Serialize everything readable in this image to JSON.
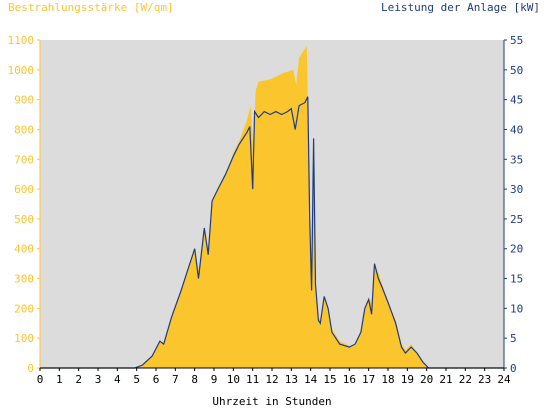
{
  "chart_data": {
    "type": "area",
    "header_left": "Bestrahlungsstärke [W/qm]",
    "header_right": "Leistung der Anlage [kW]",
    "xlabel": "Uhrzeit in Stunden",
    "grid": false,
    "x_range": [
      0,
      24
    ],
    "x_ticks": [
      "0",
      "1",
      "2",
      "3",
      "4",
      "5",
      "6",
      "7",
      "8",
      "9",
      "10",
      "11",
      "12",
      "13",
      "14",
      "15",
      "16",
      "17",
      "18",
      "19",
      "20",
      "21",
      "22",
      "23",
      "24"
    ],
    "y_left": {
      "range": [
        0,
        1100
      ],
      "ticks": [
        "0",
        "100",
        "200",
        "300",
        "400",
        "500",
        "600",
        "700",
        "800",
        "900",
        "1000",
        "1100"
      ],
      "color": "#fbc52e"
    },
    "y_right": {
      "range": [
        0,
        55
      ],
      "ticks": [
        "0",
        "5",
        "10",
        "15",
        "20",
        "25",
        "30",
        "35",
        "40",
        "45",
        "50",
        "55"
      ],
      "color": "#1f3c80"
    },
    "colors": {
      "plot_bg": "#dcdcdc",
      "area": "#fbc52e",
      "line": "#1f3c80"
    },
    "series": [
      {
        "axis": "left",
        "kind": "area",
        "points": [
          [
            0,
            0
          ],
          [
            4.9,
            0
          ],
          [
            5.3,
            10
          ],
          [
            5.8,
            40
          ],
          [
            6.2,
            90
          ],
          [
            6.4,
            80
          ],
          [
            6.8,
            170
          ],
          [
            7.3,
            260
          ],
          [
            7.6,
            320
          ],
          [
            8.0,
            400
          ],
          [
            8.2,
            330
          ],
          [
            8.5,
            470
          ],
          [
            8.7,
            400
          ],
          [
            8.9,
            560
          ],
          [
            9.2,
            600
          ],
          [
            9.6,
            650
          ],
          [
            10.0,
            720
          ],
          [
            10.3,
            760
          ],
          [
            10.7,
            830
          ],
          [
            10.9,
            880
          ],
          [
            11.05,
            720
          ],
          [
            11.15,
            930
          ],
          [
            11.3,
            960
          ],
          [
            11.7,
            965
          ],
          [
            12.0,
            970
          ],
          [
            12.3,
            980
          ],
          [
            12.6,
            990
          ],
          [
            12.9,
            995
          ],
          [
            13.1,
            1000
          ],
          [
            13.25,
            950
          ],
          [
            13.4,
            1040
          ],
          [
            13.6,
            1060
          ],
          [
            13.8,
            1080
          ],
          [
            13.85,
            900
          ],
          [
            13.95,
            420
          ],
          [
            14.05,
            280
          ],
          [
            14.15,
            790
          ],
          [
            14.25,
            300
          ],
          [
            14.4,
            170
          ],
          [
            14.5,
            160
          ],
          [
            14.7,
            240
          ],
          [
            14.9,
            200
          ],
          [
            15.1,
            130
          ],
          [
            15.5,
            90
          ],
          [
            16.0,
            75
          ],
          [
            16.3,
            80
          ],
          [
            16.6,
            120
          ],
          [
            16.8,
            200
          ],
          [
            17.0,
            230
          ],
          [
            17.15,
            220
          ],
          [
            17.3,
            350
          ],
          [
            17.5,
            320
          ],
          [
            17.7,
            280
          ],
          [
            18.0,
            220
          ],
          [
            18.4,
            160
          ],
          [
            18.7,
            80
          ],
          [
            18.9,
            60
          ],
          [
            19.2,
            80
          ],
          [
            19.5,
            50
          ],
          [
            19.8,
            20
          ],
          [
            20.1,
            0
          ],
          [
            24,
            0
          ]
        ]
      },
      {
        "axis": "right",
        "kind": "line",
        "points": [
          [
            0,
            0
          ],
          [
            4.9,
            0
          ],
          [
            5.3,
            0.5
          ],
          [
            5.8,
            2
          ],
          [
            6.2,
            4.5
          ],
          [
            6.4,
            4
          ],
          [
            6.8,
            8.5
          ],
          [
            7.3,
            13
          ],
          [
            7.6,
            16
          ],
          [
            8.0,
            20
          ],
          [
            8.2,
            15
          ],
          [
            8.5,
            23.5
          ],
          [
            8.7,
            19
          ],
          [
            8.9,
            28
          ],
          [
            9.2,
            30
          ],
          [
            9.6,
            32.5
          ],
          [
            10.0,
            35.5
          ],
          [
            10.3,
            37.5
          ],
          [
            10.7,
            39.5
          ],
          [
            10.85,
            40.5
          ],
          [
            11.0,
            30
          ],
          [
            11.1,
            43
          ],
          [
            11.3,
            42
          ],
          [
            11.6,
            43
          ],
          [
            11.9,
            42.5
          ],
          [
            12.2,
            43
          ],
          [
            12.5,
            42.5
          ],
          [
            12.8,
            43
          ],
          [
            13.0,
            43.5
          ],
          [
            13.2,
            40
          ],
          [
            13.4,
            44
          ],
          [
            13.7,
            44.5
          ],
          [
            13.85,
            45.5
          ],
          [
            13.95,
            25
          ],
          [
            14.05,
            13
          ],
          [
            14.15,
            38.5
          ],
          [
            14.25,
            14
          ],
          [
            14.4,
            8
          ],
          [
            14.5,
            7.5
          ],
          [
            14.7,
            12
          ],
          [
            14.9,
            10
          ],
          [
            15.1,
            6
          ],
          [
            15.5,
            4
          ],
          [
            16.0,
            3.5
          ],
          [
            16.3,
            4
          ],
          [
            16.6,
            6
          ],
          [
            16.8,
            10
          ],
          [
            17.0,
            11.5
          ],
          [
            17.15,
            9
          ],
          [
            17.3,
            17.5
          ],
          [
            17.5,
            15
          ],
          [
            17.7,
            13.5
          ],
          [
            18.0,
            11
          ],
          [
            18.4,
            7.5
          ],
          [
            18.7,
            3.5
          ],
          [
            18.9,
            2.5
          ],
          [
            19.2,
            3.5
          ],
          [
            19.5,
            2.5
          ],
          [
            19.8,
            1
          ],
          [
            20.1,
            0
          ],
          [
            24,
            0
          ]
        ]
      }
    ]
  }
}
